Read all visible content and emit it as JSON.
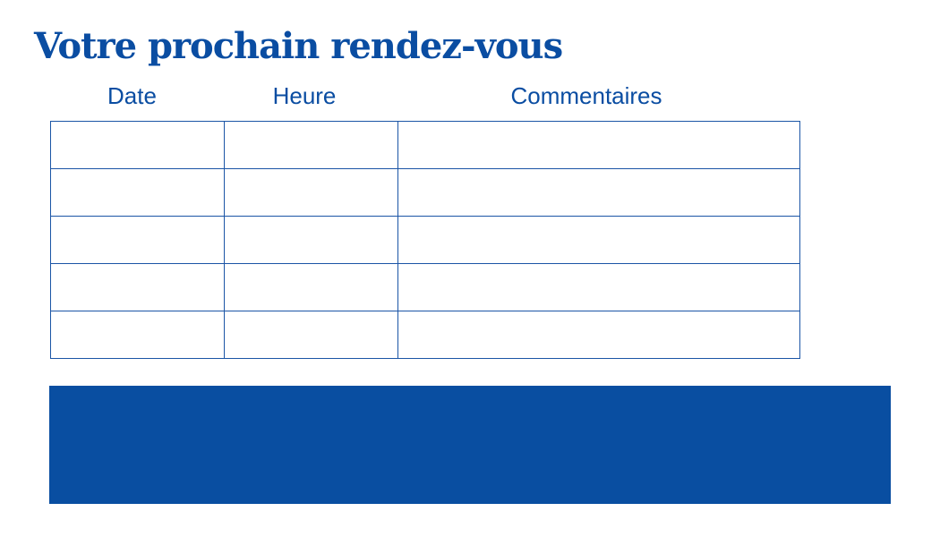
{
  "title": "Votre prochain rendez-vous",
  "columns": [
    "Date",
    "Heure",
    "Commentaires"
  ],
  "rows": [
    {
      "date": "",
      "heure": "",
      "commentaires": ""
    },
    {
      "date": "",
      "heure": "",
      "commentaires": ""
    },
    {
      "date": "",
      "heure": "",
      "commentaires": ""
    },
    {
      "date": "",
      "heure": "",
      "commentaires": ""
    },
    {
      "date": "",
      "heure": "",
      "commentaires": ""
    }
  ],
  "colors": {
    "primary": "#0a4da2",
    "band": "#094ea1"
  }
}
